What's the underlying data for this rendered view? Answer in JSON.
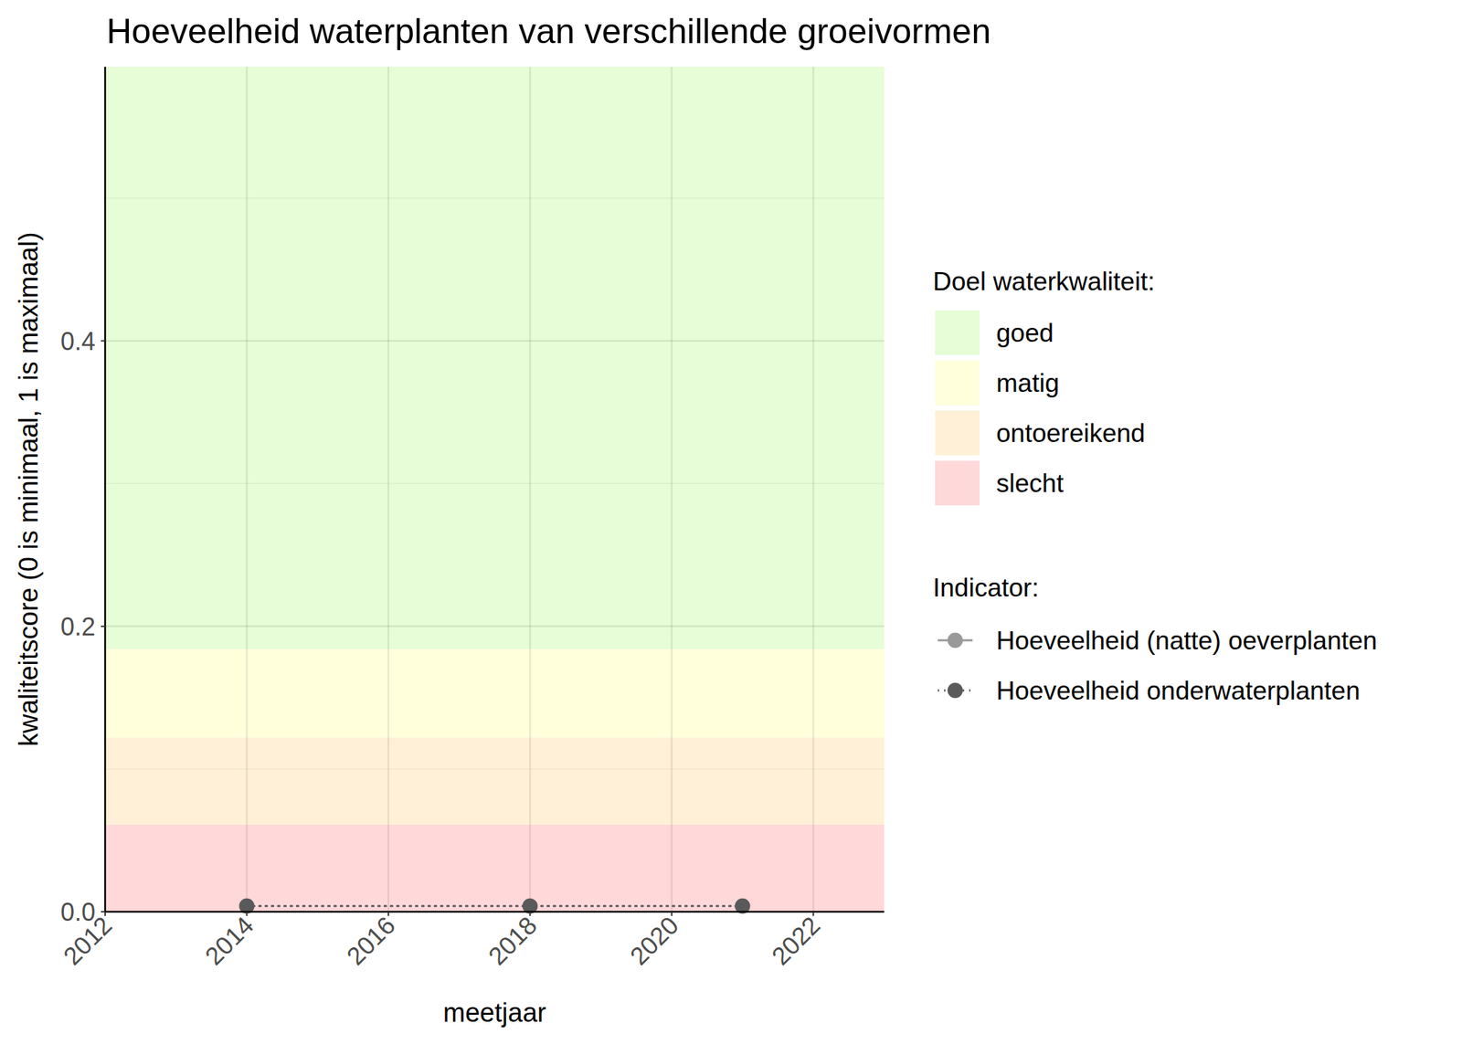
{
  "chart_data": {
    "type": "line",
    "title": "Hoeveelheid waterplanten van verschillende groeivormen",
    "x_label": "meetjaar",
    "y_label": "kwaliteitscore (0 is minimaal, 1 is maximaal)",
    "x": [
      2014,
      2018,
      2021
    ],
    "series": [
      {
        "name": "Hoeveelheid (natte) oeverplanten",
        "color": "#999999",
        "marker": "circle",
        "line_style": "solid",
        "values": [
          null,
          null,
          null
        ]
      },
      {
        "name": "Hoeveelheid onderwaterplanten",
        "color": "#5a5a5a",
        "marker": "circle",
        "line_style": "dotted",
        "values": [
          0.004,
          0.004,
          0.004
        ]
      }
    ],
    "xlim": [
      2012,
      2023
    ],
    "xticks": [
      2012,
      2014,
      2016,
      2018,
      2020,
      2022
    ],
    "ylim": [
      0,
      0.592
    ],
    "yticks": [
      {
        "value": 0,
        "label": "0.0"
      },
      {
        "value": 0.2,
        "label": "0.2"
      },
      {
        "value": 0.4,
        "label": "0.4"
      }
    ],
    "grid": true,
    "legend": "right",
    "band_legend_title": "Doel waterkwaliteit:",
    "series_legend_title": "Indicator:",
    "bands": [
      {
        "name": "goed",
        "color": "#e6fdd7",
        "ymin": 0.184,
        "ymax": 0.592
      },
      {
        "name": "matig",
        "color": "#ffffdc",
        "ymin": 0.122,
        "ymax": 0.184
      },
      {
        "name": "ontoereikend",
        "color": "#fff0d7",
        "ymin": 0.061,
        "ymax": 0.122
      },
      {
        "name": "slecht",
        "color": "#ffd8da",
        "ymin": 0,
        "ymax": 0.061
      }
    ]
  }
}
